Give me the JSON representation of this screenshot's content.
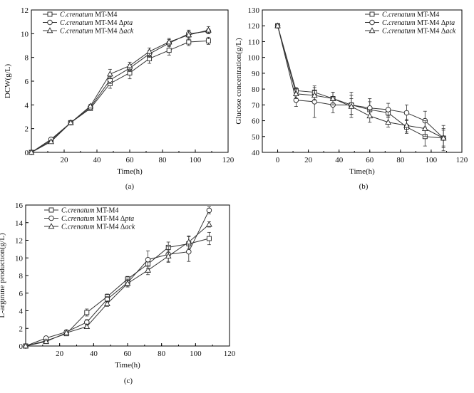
{
  "chart_data": [
    {
      "panel_label": "(a)",
      "type": "line",
      "xlabel": "Time(h)",
      "ylabel": "DCW(g/L)",
      "xlim": [
        0,
        120
      ],
      "ylim": [
        0,
        12
      ],
      "xticks": [
        20,
        40,
        60,
        80,
        100,
        120
      ],
      "yticks": [
        0,
        2,
        4,
        6,
        8,
        10,
        12
      ],
      "legend_position": "top-left",
      "series": [
        {
          "name_italic": "C.crenatum",
          "name_rest": " MT-M4",
          "marker": "square",
          "x": [
            0,
            12,
            24,
            36,
            48,
            60,
            72,
            84,
            96,
            108
          ],
          "y": [
            0,
            1.0,
            2.5,
            3.7,
            5.8,
            6.7,
            7.9,
            8.6,
            9.3,
            9.4
          ],
          "err": [
            0,
            0.1,
            0.1,
            0.15,
            0.4,
            0.5,
            0.4,
            0.4,
            0.3,
            0.3
          ]
        },
        {
          "name_italic": "C.crenatum",
          "name_rest": " MT-M4 Δ",
          "name_suffix_italic": "pta",
          "marker": "circle",
          "x": [
            0,
            12,
            24,
            36,
            48,
            60,
            72,
            84,
            96,
            108
          ],
          "y": [
            0,
            1.1,
            2.5,
            3.8,
            6.1,
            7.1,
            8.3,
            9.2,
            10.0,
            10.2
          ],
          "err": [
            0,
            0.1,
            0.1,
            0.15,
            0.3,
            0.3,
            0.3,
            0.3,
            0.3,
            0.2
          ]
        },
        {
          "name_italic": "C.crenatum",
          "name_rest": " MT-M4 Δ",
          "name_suffix_italic": "ack",
          "marker": "triangle",
          "x": [
            0,
            12,
            24,
            36,
            48,
            60,
            72,
            84,
            96,
            108
          ],
          "y": [
            0,
            0.9,
            2.5,
            3.9,
            6.6,
            7.3,
            8.5,
            9.3,
            9.9,
            10.3
          ],
          "err": [
            0,
            0.1,
            0.1,
            0.15,
            0.4,
            0.3,
            0.3,
            0.3,
            0.4,
            0.3
          ]
        }
      ]
    },
    {
      "panel_label": "(b)",
      "type": "line",
      "xlabel": "Time(h)",
      "ylabel": "Glucose concentration(g/L)",
      "xlim": [
        -10,
        120
      ],
      "ylim": [
        40,
        130
      ],
      "xticks": [
        0,
        20,
        40,
        60,
        80,
        100,
        120
      ],
      "yticks": [
        40,
        50,
        60,
        70,
        80,
        90,
        100,
        110,
        120,
        130
      ],
      "legend_position": "top-right",
      "series": [
        {
          "name_italic": "C.crenatum",
          "name_rest": " MT-M4",
          "marker": "square",
          "x": [
            0,
            12,
            24,
            36,
            48,
            60,
            72,
            84,
            96,
            108
          ],
          "y": [
            120,
            79,
            78,
            74,
            70,
            67,
            65,
            56,
            50,
            49
          ],
          "err": [
            0,
            2,
            3,
            4,
            6,
            5,
            3,
            4,
            6,
            6
          ]
        },
        {
          "name_italic": "C.crenatum",
          "name_rest": " MT-M4 Δ",
          "name_suffix_italic": "pta",
          "marker": "circle",
          "x": [
            0,
            12,
            24,
            36,
            48,
            60,
            72,
            84,
            96,
            108
          ],
          "y": [
            120,
            73,
            72,
            70,
            70,
            68,
            67,
            65,
            60,
            49
          ],
          "err": [
            0,
            4,
            10,
            5,
            8,
            6,
            4,
            5,
            6,
            8
          ]
        },
        {
          "name_italic": "C.crenatum",
          "name_rest": " MT-M4 Δ",
          "name_suffix_italic": "ack",
          "marker": "triangle",
          "x": [
            0,
            12,
            24,
            36,
            48,
            60,
            72,
            84,
            96,
            108
          ],
          "y": [
            120,
            77,
            76,
            74,
            69,
            63,
            59,
            57,
            55,
            49
          ],
          "err": [
            0,
            3,
            3,
            4,
            5,
            4,
            3,
            4,
            5,
            5
          ]
        }
      ]
    },
    {
      "panel_label": "(c)",
      "type": "line",
      "xlabel": "Time(h)",
      "ylabel": "L-arginine production(g/L)",
      "xlim": [
        0,
        120
      ],
      "ylim": [
        0,
        16
      ],
      "xticks": [
        20,
        40,
        60,
        80,
        100,
        120
      ],
      "yticks": [
        0,
        2,
        4,
        6,
        8,
        10,
        12,
        14,
        16
      ],
      "legend_position": "top-left",
      "series": [
        {
          "name_italic": "C.crenatum",
          "name_rest": " MT-M4",
          "marker": "square",
          "x": [
            0,
            12,
            24,
            36,
            48,
            60,
            72,
            84,
            96,
            108
          ],
          "y": [
            0,
            0.6,
            1.4,
            3.8,
            5.6,
            7.6,
            9.3,
            11.2,
            11.6,
            12.2
          ],
          "err": [
            0,
            0.1,
            0.2,
            0.4,
            0.3,
            0.3,
            0.5,
            0.6,
            0.8,
            0.7
          ]
        },
        {
          "name_italic": "C.crenatum",
          "name_rest": " MT-M4 Δ",
          "name_suffix_italic": "pta",
          "marker": "circle",
          "x": [
            0,
            12,
            24,
            36,
            48,
            60,
            72,
            84,
            96,
            108
          ],
          "y": [
            0,
            0.9,
            1.6,
            2.7,
            5.3,
            7.2,
            9.8,
            10.4,
            10.7,
            15.4
          ],
          "err": [
            0,
            0.1,
            0.2,
            0.3,
            0.3,
            0.4,
            1.0,
            0.9,
            1.1,
            0.4
          ]
        },
        {
          "name_italic": "C.crenatum",
          "name_rest": " MT-M4 Δ",
          "name_suffix_italic": "ack",
          "marker": "triangle",
          "x": [
            0,
            12,
            24,
            36,
            48,
            60,
            72,
            84,
            96,
            108
          ],
          "y": [
            0,
            0.5,
            1.5,
            2.2,
            4.8,
            7.1,
            8.6,
            10.2,
            11.8,
            13.8
          ],
          "err": [
            0,
            0.1,
            0.2,
            0.2,
            0.3,
            0.4,
            0.5,
            0.6,
            0.7,
            0.3
          ]
        }
      ]
    }
  ]
}
